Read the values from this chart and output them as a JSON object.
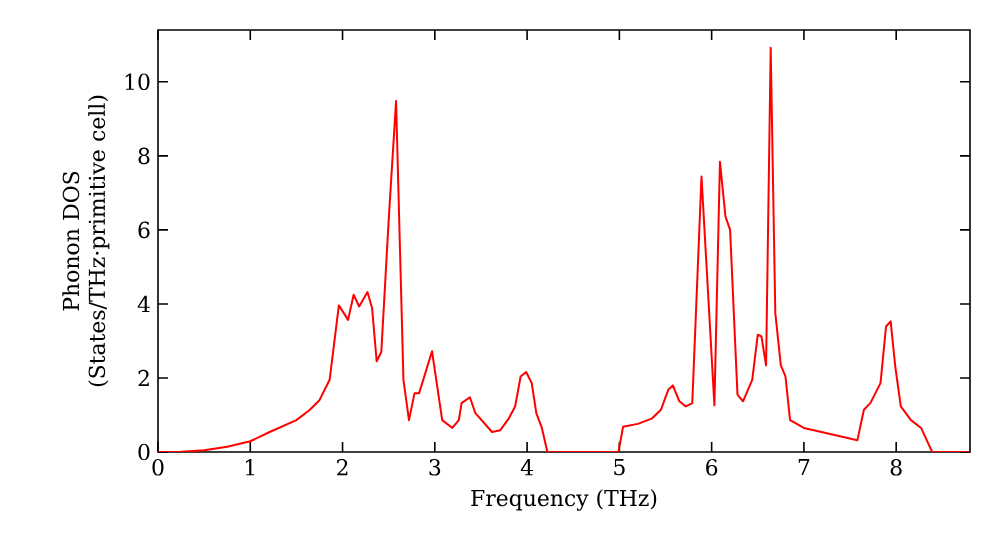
{
  "chart_data": {
    "type": "line",
    "xlabel": "Frequency (THz)",
    "ylabel": "Phonon DOS (States/THz·primitive cell)",
    "xlim": [
      0,
      8.8
    ],
    "ylim": [
      0,
      11.4
    ],
    "xticks": [
      0,
      1,
      2,
      3,
      4,
      5,
      6,
      7,
      8
    ],
    "yticks": [
      0,
      2,
      4,
      6,
      8,
      10
    ],
    "grid": false,
    "marker": "none",
    "line_style": "solid",
    "series": [
      {
        "color": "#ff0000",
        "x": [
          0,
          0.25,
          0.5,
          0.75,
          1.0,
          1.21,
          1.5,
          1.64,
          1.75,
          1.86,
          1.96,
          2.06,
          2.12,
          2.18,
          2.27,
          2.32,
          2.37,
          2.42,
          2.5,
          2.58,
          2.66,
          2.72,
          2.78,
          2.83,
          2.97,
          3.08,
          3.19,
          3.26,
          3.29,
          3.38,
          3.44,
          3.62,
          3.71,
          3.8,
          3.87,
          3.93,
          3.99,
          4.05,
          4.1,
          4.16,
          4.22,
          4.99,
          5.04,
          5.2,
          5.35,
          5.45,
          5.53,
          5.58,
          5.65,
          5.72,
          5.79,
          5.89,
          6.03,
          6.09,
          6.15,
          6.2,
          6.28,
          6.34,
          6.44,
          6.5,
          6.54,
          6.59,
          6.64,
          6.69,
          6.75,
          6.8,
          6.85,
          7.0,
          7.58,
          7.65,
          7.72,
          7.83,
          7.89,
          7.94,
          7.99,
          8.05,
          8.16,
          8.27,
          8.39,
          8.79
        ],
        "values": [
          0,
          0.01,
          0.05,
          0.14,
          0.29,
          0.54,
          0.86,
          1.13,
          1.4,
          1.95,
          3.96,
          3.57,
          4.25,
          3.93,
          4.32,
          3.89,
          2.45,
          2.7,
          6.27,
          9.48,
          1.95,
          0.86,
          1.59,
          1.59,
          2.72,
          0.86,
          0.65,
          0.86,
          1.32,
          1.48,
          1.05,
          0.54,
          0.59,
          0.9,
          1.23,
          2.04,
          2.16,
          1.86,
          1.05,
          0.65,
          0,
          0,
          0.68,
          0.76,
          0.9,
          1.14,
          1.68,
          1.8,
          1.37,
          1.23,
          1.32,
          7.44,
          1.26,
          7.84,
          6.36,
          6.0,
          1.55,
          1.37,
          1.95,
          3.17,
          3.12,
          2.34,
          10.92,
          3.75,
          2.34,
          2.04,
          0.86,
          0.65,
          0.32,
          1.14,
          1.32,
          1.86,
          3.39,
          3.53,
          2.31,
          1.23,
          0.86,
          0.65,
          0,
          0
        ]
      }
    ]
  }
}
